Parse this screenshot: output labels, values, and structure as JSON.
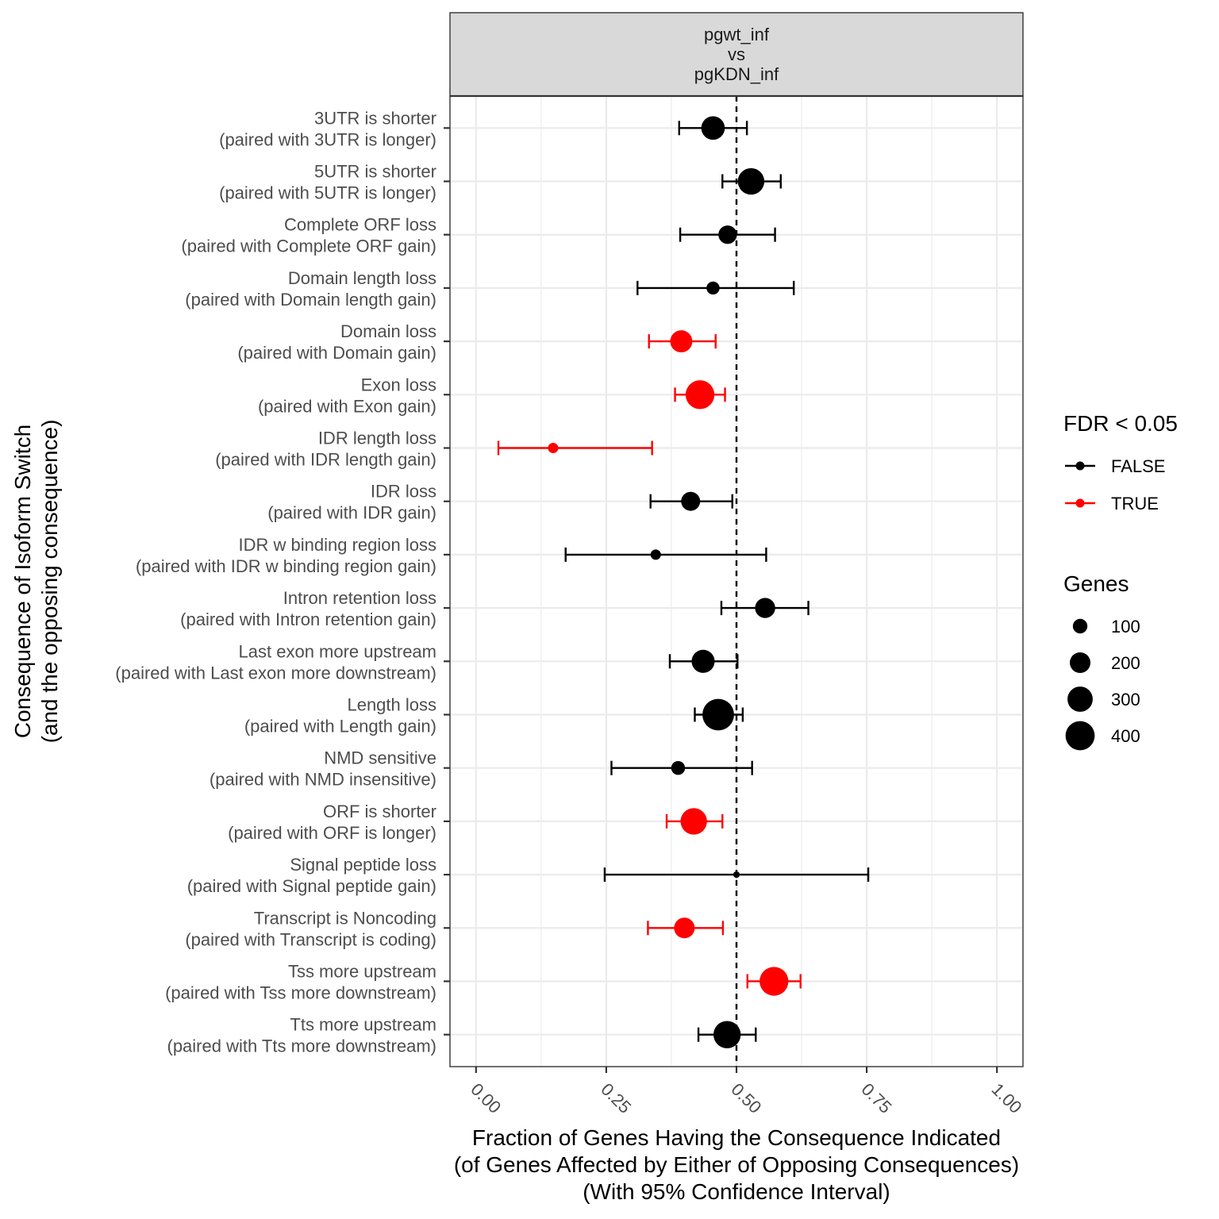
{
  "chart_data": {
    "type": "scatter",
    "facet_label": [
      "pgwt_inf",
      "vs",
      "pgKDN_inf"
    ],
    "xlabel": [
      "Fraction of Genes Having the Consequence Indicated",
      "(of Genes Affected by Either of Opposing Consequences)",
      "(With 95% Confidence Interval)"
    ],
    "ylabel": [
      "Consequence of Isoform Switch",
      "(and the opposing consequence)"
    ],
    "xlim": [
      -0.05,
      1.05
    ],
    "xticks": [
      0.0,
      0.25,
      0.5,
      0.75,
      1.0
    ],
    "xtick_labels": [
      "0.00",
      "0.25",
      "0.50",
      "0.75",
      "1.00"
    ],
    "reference_line_x": 0.5,
    "grid": true,
    "colors": {
      "FALSE": "#000000",
      "TRUE": "#ff0000"
    },
    "legend": {
      "position": "right",
      "color_title": "FDR < 0.05",
      "color_entries": [
        "FALSE",
        "TRUE"
      ],
      "size_title": "Genes",
      "size_entries": [
        100,
        200,
        300,
        400
      ]
    },
    "categories": [
      {
        "label": "3UTR is shorter",
        "sublabel": "(paired with 3UTR is longer)",
        "x": 0.455,
        "ci": [
          0.39,
          0.52
        ],
        "genes": 260,
        "significant": "FALSE"
      },
      {
        "label": "5UTR is shorter",
        "sublabel": "(paired with 5UTR is longer)",
        "x": 0.528,
        "ci": [
          0.473,
          0.585
        ],
        "genes": 330,
        "significant": "FALSE"
      },
      {
        "label": "Complete ORF loss",
        "sublabel": "(paired with Complete ORF gain)",
        "x": 0.483,
        "ci": [
          0.392,
          0.574
        ],
        "genes": 160,
        "significant": "FALSE"
      },
      {
        "label": "Domain length loss",
        "sublabel": "(paired with Domain length gain)",
        "x": 0.455,
        "ci": [
          0.31,
          0.61
        ],
        "genes": 80,
        "significant": "FALSE"
      },
      {
        "label": "Domain loss",
        "sublabel": "(paired with Domain gain)",
        "x": 0.394,
        "ci": [
          0.332,
          0.46
        ],
        "genes": 230,
        "significant": "TRUE"
      },
      {
        "label": "Exon loss",
        "sublabel": "(paired with Exon gain)",
        "x": 0.43,
        "ci": [
          0.382,
          0.478
        ],
        "genes": 390,
        "significant": "TRUE"
      },
      {
        "label": "IDR length loss",
        "sublabel": "(paired with IDR length gain)",
        "x": 0.148,
        "ci": [
          0.043,
          0.338
        ],
        "genes": 50,
        "significant": "TRUE"
      },
      {
        "label": "IDR loss",
        "sublabel": "(paired with IDR gain)",
        "x": 0.412,
        "ci": [
          0.335,
          0.492
        ],
        "genes": 170,
        "significant": "FALSE"
      },
      {
        "label": "IDR w binding region loss",
        "sublabel": "(paired with IDR w binding region gain)",
        "x": 0.345,
        "ci": [
          0.172,
          0.557
        ],
        "genes": 50,
        "significant": "FALSE"
      },
      {
        "label": "Intron retention loss",
        "sublabel": "(paired with Intron retention gain)",
        "x": 0.555,
        "ci": [
          0.471,
          0.638
        ],
        "genes": 190,
        "significant": "FALSE"
      },
      {
        "label": "Last exon more upstream",
        "sublabel": "(paired with Last exon more downstream)",
        "x": 0.436,
        "ci": [
          0.372,
          0.502
        ],
        "genes": 250,
        "significant": "FALSE"
      },
      {
        "label": "Length loss",
        "sublabel": "(paired with Length gain)",
        "x": 0.465,
        "ci": [
          0.42,
          0.512
        ],
        "genes": 470,
        "significant": "FALSE"
      },
      {
        "label": "NMD sensitive",
        "sublabel": "(paired with NMD insensitive)",
        "x": 0.388,
        "ci": [
          0.26,
          0.53
        ],
        "genes": 90,
        "significant": "FALSE"
      },
      {
        "label": "ORF is shorter",
        "sublabel": "(paired with ORF is longer)",
        "x": 0.418,
        "ci": [
          0.366,
          0.473
        ],
        "genes": 330,
        "significant": "TRUE"
      },
      {
        "label": "Signal peptide loss",
        "sublabel": "(paired with Signal peptide gain)",
        "x": 0.5,
        "ci": [
          0.247,
          0.753
        ],
        "genes": 20,
        "significant": "FALSE"
      },
      {
        "label": "Transcript is Noncoding",
        "sublabel": "(paired with Transcript is coding)",
        "x": 0.4,
        "ci": [
          0.33,
          0.474
        ],
        "genes": 200,
        "significant": "TRUE"
      },
      {
        "label": "Tss more upstream",
        "sublabel": "(paired with Tss more downstream)",
        "x": 0.572,
        "ci": [
          0.521,
          0.623
        ],
        "genes": 390,
        "significant": "TRUE"
      },
      {
        "label": "Tts more upstream",
        "sublabel": "(paired with Tts more downstream)",
        "x": 0.482,
        "ci": [
          0.427,
          0.537
        ],
        "genes": 350,
        "significant": "FALSE"
      }
    ]
  }
}
